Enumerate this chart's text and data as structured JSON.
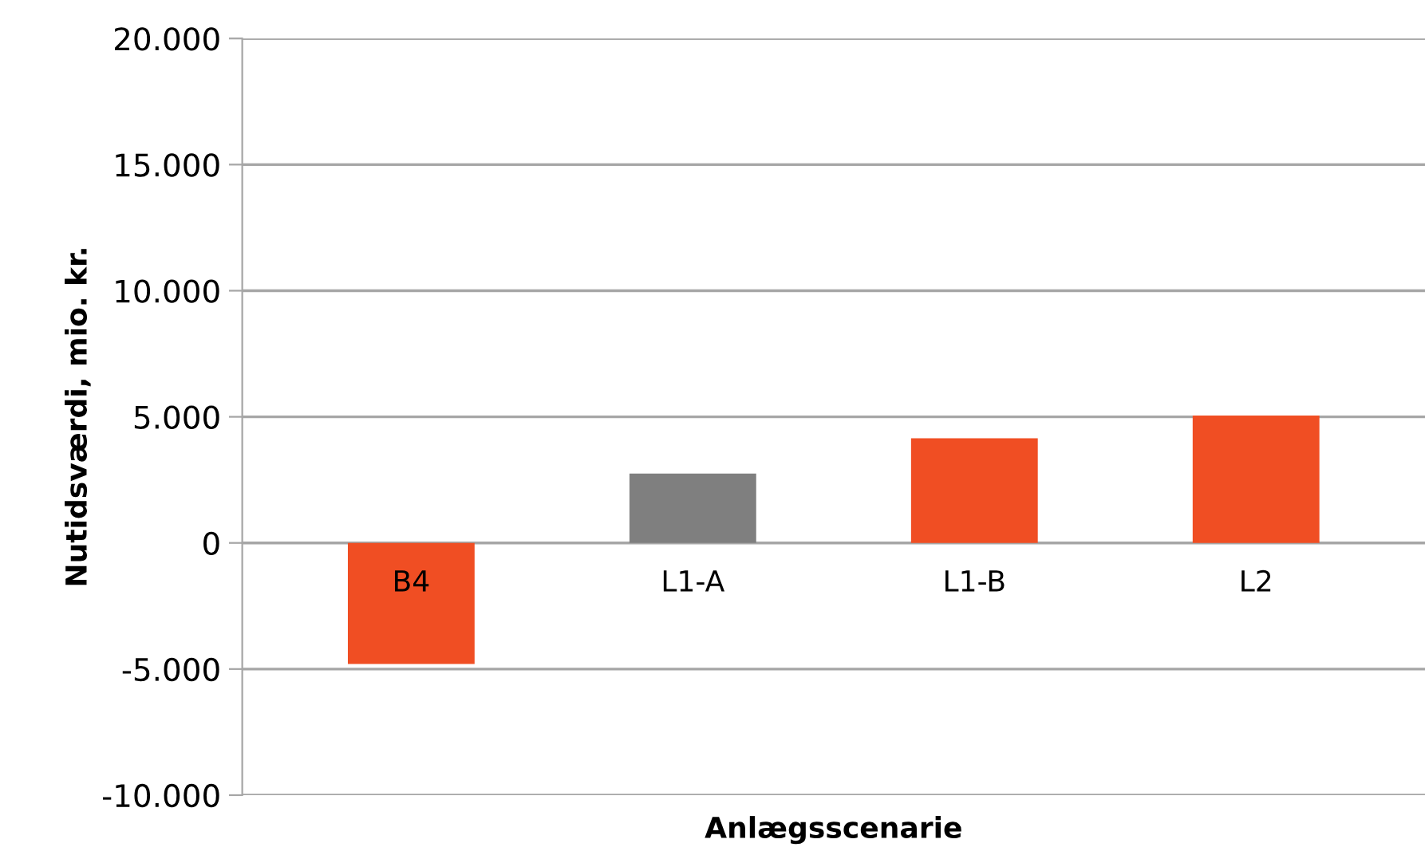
{
  "chart_data": {
    "type": "bar",
    "xlabel": "Anlægsscenarie",
    "ylabel": "Nutidsværdi, mio. kr.",
    "categories": [
      "B4",
      "L1-A",
      "L1-B",
      "L2"
    ],
    "values": [
      -4800,
      2750,
      4150,
      5050
    ],
    "colors": [
      "#f04e23",
      "#7f7f7f",
      "#f04e23",
      "#f04e23"
    ],
    "ylim": [
      -10000,
      20000
    ],
    "yticks": [
      {
        "value": -10000,
        "label": "-10.000"
      },
      {
        "value": -5000,
        "label": "-5.000"
      },
      0,
      {
        "value": 5000,
        "label": "5.000"
      },
      {
        "value": 10000,
        "label": "10.000"
      },
      {
        "value": 15000,
        "label": "15.000"
      },
      {
        "value": 20000,
        "label": "20.000"
      }
    ],
    "grid": "y"
  }
}
